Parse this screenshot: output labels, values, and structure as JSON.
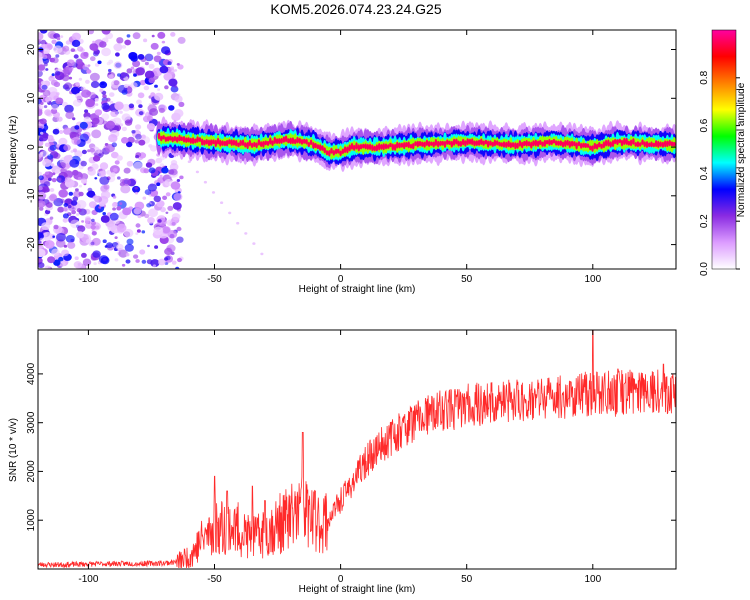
{
  "title": "KOM5.2026.074.23.24.G25",
  "chart_data": [
    {
      "type": "heatmap",
      "xlabel": "Height of straight line (km)",
      "ylabel": "Frequency (Hz)",
      "xlim": [
        -120,
        133
      ],
      "ylim": [
        -25,
        24
      ],
      "xticks": [
        -100,
        -50,
        0,
        50,
        100
      ],
      "yticks": [
        -20,
        -10,
        0,
        10,
        20
      ],
      "colorbar": {
        "label": "Normalized spectral amplitude",
        "range": [
          0,
          1
        ],
        "ticks": [
          0,
          0.2,
          0.4,
          0.6,
          0.8
        ],
        "tick_labels": [
          "0.0",
          "0.2",
          "0.4",
          "0.6",
          "0.8"
        ],
        "colormap": [
          "#ffffff",
          "#dc9cff",
          "#8a2be2",
          "#0000ff",
          "#00ffff",
          "#00ff00",
          "#ffff00",
          "#ff8000",
          "#ff0000",
          "#ff00a0"
        ]
      },
      "signal_band": {
        "x_range": [
          -72,
          133
        ],
        "frequency_trace": [
          [
            -72,
            2
          ],
          [
            -60,
            1.5
          ],
          [
            -50,
            1
          ],
          [
            -35,
            0.5
          ],
          [
            -20,
            1.5
          ],
          [
            -10,
            0.5
          ],
          [
            -5,
            -1
          ],
          [
            0,
            -1
          ],
          [
            5,
            0
          ],
          [
            15,
            0
          ],
          [
            30,
            0.5
          ],
          [
            50,
            1
          ],
          [
            70,
            0.5
          ],
          [
            85,
            1
          ],
          [
            100,
            0
          ],
          [
            110,
            1
          ],
          [
            133,
            0.5
          ]
        ],
        "peak_amplitude": 0.95
      },
      "noise_region": {
        "x_range": [
          -120,
          -63
        ],
        "amplitude_range": [
          0.05,
          0.35
        ]
      }
    },
    {
      "type": "line",
      "xlabel": "Height of straight line (km)",
      "ylabel": "SNR (10 * v/v)",
      "xlim": [
        -120,
        133
      ],
      "ylim": [
        0,
        4900
      ],
      "xticks": [
        -100,
        -50,
        0,
        50,
        100
      ],
      "yticks": [
        1000,
        2000,
        3000,
        4000
      ],
      "color": "#ff2a2a",
      "baseline_x": [
        -120,
        -110,
        -100,
        -90,
        -80,
        -70,
        -65,
        -60,
        -55,
        -50,
        -45,
        -40,
        -35,
        -30,
        -25,
        -20,
        -15,
        -10,
        -5,
        0,
        5,
        10,
        15,
        20,
        25,
        30,
        40,
        50,
        60,
        70,
        80,
        90,
        100,
        110,
        120,
        133
      ],
      "baseline_y": [
        90,
        90,
        100,
        110,
        110,
        120,
        150,
        250,
        600,
        850,
        900,
        800,
        600,
        750,
        900,
        1050,
        1250,
        950,
        1000,
        1400,
        1800,
        2200,
        2500,
        2700,
        2900,
        3050,
        3250,
        3350,
        3400,
        3450,
        3500,
        3550,
        3600,
        3600,
        3700,
        3650
      ],
      "spikes": [
        [
          -50,
          1900
        ],
        [
          -45,
          1600
        ],
        [
          -35,
          1700
        ],
        [
          -30,
          1400
        ],
        [
          -15,
          2800
        ],
        [
          -10,
          1600
        ],
        [
          100,
          4900
        ],
        [
          110,
          4100
        ],
        [
          128,
          4200
        ]
      ]
    }
  ]
}
